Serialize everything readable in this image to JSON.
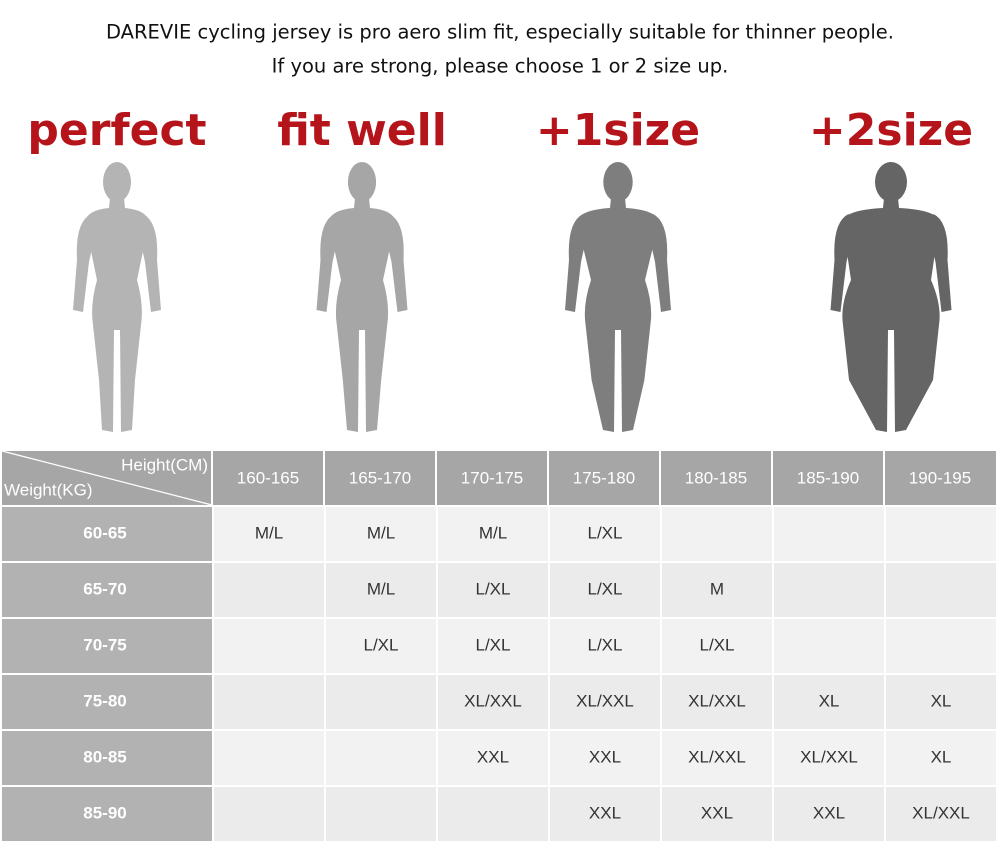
{
  "header": {
    "lines": [
      "DAREVIE cycling jersey is pro aero slim fit, especially suitable for thinner people.",
      "If you are strong, please choose 1 or 2 size up."
    ]
  },
  "figures": [
    {
      "label": "perfect"
    },
    {
      "label": "fit well"
    },
    {
      "label": "+1size"
    },
    {
      "label": "+2size"
    }
  ],
  "table": {
    "corner": {
      "column_heading": "Height(CM)",
      "row_heading": "Weight(KG)"
    },
    "columns": [
      "160-165",
      "165-170",
      "170-175",
      "175-180",
      "180-185",
      "185-190",
      "190-195"
    ],
    "rows": [
      {
        "label": "60-65",
        "cells": [
          "M/L",
          "M/L",
          "M/L",
          "L/XL",
          null,
          null,
          null
        ]
      },
      {
        "label": "65-70",
        "cells": [
          null,
          "M/L",
          "L/XL",
          "L/XL",
          "M",
          null,
          null
        ]
      },
      {
        "label": "70-75",
        "cells": [
          null,
          "L/XL",
          "L/XL",
          "L/XL",
          "L/XL",
          null,
          null
        ]
      },
      {
        "label": "75-80",
        "cells": [
          null,
          null,
          "XL/XXL",
          "XL/XXL",
          "XL/XXL",
          "XL",
          "XL"
        ]
      },
      {
        "label": "80-85",
        "cells": [
          null,
          null,
          "XXL",
          "XXL",
          "XL/XXL",
          "XL/XXL",
          "XL"
        ]
      },
      {
        "label": "85-90",
        "cells": [
          null,
          null,
          null,
          "XXL",
          "XXL",
          "XXL",
          "XL/XXL"
        ]
      }
    ]
  }
}
